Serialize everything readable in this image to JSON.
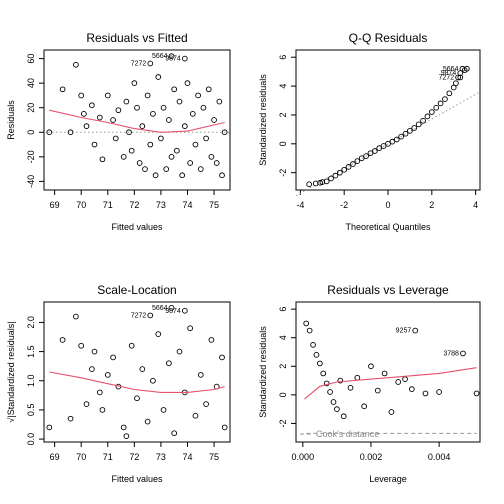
{
  "chart_data": [
    {
      "type": "scatter",
      "title": "Residuals vs Fitted",
      "xlabel": "Fitted values",
      "ylabel": "Residuals",
      "xlim": [
        68.6,
        75.6
      ],
      "ylim": [
        -47,
        67
      ],
      "xticks": [
        69,
        70,
        71,
        72,
        73,
        74,
        75
      ],
      "yticks": [
        -40,
        -20,
        0,
        20,
        40,
        60
      ],
      "points": [
        [
          68.8,
          0
        ],
        [
          69.3,
          35
        ],
        [
          69.6,
          0
        ],
        [
          70.0,
          30
        ],
        [
          70.1,
          15
        ],
        [
          69.8,
          55
        ],
        [
          70.2,
          5
        ],
        [
          70.5,
          -10
        ],
        [
          70.4,
          22
        ],
        [
          70.7,
          12
        ],
        [
          70.8,
          -22
        ],
        [
          71.0,
          30
        ],
        [
          71.2,
          10
        ],
        [
          71.3,
          -5
        ],
        [
          71.4,
          18
        ],
        [
          71.6,
          -20
        ],
        [
          71.7,
          25
        ],
        [
          71.8,
          0
        ],
        [
          71.9,
          -15
        ],
        [
          72.0,
          40
        ],
        [
          72.1,
          20
        ],
        [
          72.2,
          -25
        ],
        [
          72.3,
          5
        ],
        [
          72.4,
          -30
        ],
        [
          72.5,
          30
        ],
        [
          72.6,
          -10
        ],
        [
          72.7,
          15
        ],
        [
          72.8,
          -35
        ],
        [
          72.9,
          45
        ],
        [
          73.0,
          -5
        ],
        [
          73.1,
          20
        ],
        [
          73.2,
          -30
        ],
        [
          73.3,
          10
        ],
        [
          73.4,
          -20
        ],
        [
          73.5,
          35
        ],
        [
          73.6,
          -15
        ],
        [
          73.7,
          25
        ],
        [
          73.8,
          -35
        ],
        [
          73.9,
          5
        ],
        [
          74.0,
          40
        ],
        [
          74.1,
          -25
        ],
        [
          74.2,
          15
        ],
        [
          74.3,
          -10
        ],
        [
          74.4,
          30
        ],
        [
          74.5,
          -30
        ],
        [
          74.6,
          20
        ],
        [
          74.7,
          -5
        ],
        [
          74.8,
          35
        ],
        [
          74.9,
          -20
        ],
        [
          75.0,
          10
        ],
        [
          75.1,
          -25
        ],
        [
          75.2,
          25
        ],
        [
          75.3,
          -35
        ],
        [
          75.4,
          0
        ]
      ],
      "labeled_points": [
        {
          "label": "5664",
          "x": 73.4,
          "y": 62
        },
        {
          "label": "9874",
          "x": 73.9,
          "y": 60
        },
        {
          "label": "7272",
          "x": 72.6,
          "y": 56
        }
      ],
      "smooth": {
        "x": [
          68.8,
          70,
          71,
          72,
          73,
          74,
          75,
          75.4
        ],
        "y": [
          18,
          12,
          8,
          3,
          0,
          1,
          6,
          8
        ]
      },
      "reference_y": 0
    },
    {
      "type": "scatter",
      "title": "Q-Q Residuals",
      "xlabel": "Theoretical Quantiles",
      "ylabel": "Standardized residuals",
      "xlim": [
        -4.2,
        4.2
      ],
      "ylim": [
        -3.2,
        6.5
      ],
      "xticks": [
        -4,
        -2,
        0,
        2,
        4
      ],
      "yticks": [
        -2,
        0,
        2,
        4,
        6
      ],
      "points": [
        [
          -3.6,
          -2.8
        ],
        [
          -3.3,
          -2.75
        ],
        [
          -3.1,
          -2.7
        ],
        [
          -3.0,
          -2.65
        ],
        [
          -2.8,
          -2.6
        ],
        [
          -2.6,
          -2.4
        ],
        [
          -2.4,
          -2.2
        ],
        [
          -2.2,
          -2.0
        ],
        [
          -2.0,
          -1.8
        ],
        [
          -1.8,
          -1.6
        ],
        [
          -1.6,
          -1.4
        ],
        [
          -1.4,
          -1.2
        ],
        [
          -1.2,
          -1.0
        ],
        [
          -1.0,
          -0.85
        ],
        [
          -0.8,
          -0.65
        ],
        [
          -0.6,
          -0.5
        ],
        [
          -0.4,
          -0.3
        ],
        [
          -0.2,
          -0.15
        ],
        [
          0.0,
          0.0
        ],
        [
          0.2,
          0.15
        ],
        [
          0.4,
          0.3
        ],
        [
          0.6,
          0.5
        ],
        [
          0.8,
          0.7
        ],
        [
          1.0,
          0.9
        ],
        [
          1.2,
          1.1
        ],
        [
          1.4,
          1.35
        ],
        [
          1.6,
          1.6
        ],
        [
          1.8,
          1.9
        ],
        [
          2.0,
          2.2
        ],
        [
          2.2,
          2.5
        ],
        [
          2.4,
          2.8
        ],
        [
          2.6,
          3.1
        ],
        [
          2.8,
          3.5
        ],
        [
          3.0,
          3.9
        ],
        [
          3.1,
          4.2
        ],
        [
          3.3,
          4.6
        ],
        [
          3.5,
          5.1
        ],
        [
          3.6,
          5.2
        ]
      ],
      "labeled_points": [
        {
          "label": "5664",
          "x": 3.4,
          "y": 5.2
        },
        {
          "label": "9874",
          "x": 3.3,
          "y": 4.9
        },
        {
          "label": "7272",
          "x": 3.2,
          "y": 4.6
        }
      ],
      "reference_line": {
        "x": [
          -4.2,
          4.2
        ],
        "y": [
          -3.6,
          3.6
        ]
      }
    },
    {
      "type": "scatter",
      "title": "Scale-Location",
      "xlabel": "Fitted values",
      "ylabel": "√|Standardized residuals|",
      "xlim": [
        68.6,
        75.6
      ],
      "ylim": [
        -0.05,
        2.35
      ],
      "xticks": [
        69,
        70,
        71,
        72,
        73,
        74,
        75
      ],
      "yticks": [
        0.0,
        0.5,
        1.0,
        1.5,
        2.0
      ],
      "points": [
        [
          68.8,
          0.2
        ],
        [
          69.3,
          1.7
        ],
        [
          69.8,
          2.1
        ],
        [
          69.6,
          0.35
        ],
        [
          70.0,
          1.6
        ],
        [
          70.2,
          0.6
        ],
        [
          70.4,
          1.2
        ],
        [
          70.5,
          1.5
        ],
        [
          70.7,
          0.8
        ],
        [
          70.8,
          0.5
        ],
        [
          71.0,
          1.1
        ],
        [
          71.2,
          1.4
        ],
        [
          71.4,
          0.9
        ],
        [
          71.6,
          0.2
        ],
        [
          71.7,
          0.05
        ],
        [
          71.9,
          1.6
        ],
        [
          72.1,
          0.7
        ],
        [
          72.3,
          1.2
        ],
        [
          72.5,
          0.3
        ],
        [
          72.7,
          1.0
        ],
        [
          72.9,
          1.8
        ],
        [
          73.1,
          0.5
        ],
        [
          73.3,
          1.3
        ],
        [
          73.5,
          0.1
        ],
        [
          73.7,
          1.5
        ],
        [
          73.9,
          0.8
        ],
        [
          74.1,
          1.9
        ],
        [
          74.3,
          0.4
        ],
        [
          74.5,
          1.1
        ],
        [
          74.7,
          0.6
        ],
        [
          74.9,
          1.7
        ],
        [
          75.1,
          0.9
        ],
        [
          75.3,
          1.4
        ],
        [
          75.4,
          0.2
        ]
      ],
      "labeled_points": [
        {
          "label": "5664",
          "x": 73.4,
          "y": 2.25
        },
        {
          "label": "9874",
          "x": 73.9,
          "y": 2.2
        },
        {
          "label": "7272",
          "x": 72.6,
          "y": 2.12
        }
      ],
      "smooth": {
        "x": [
          68.8,
          70,
          71,
          72,
          73,
          74,
          75,
          75.4
        ],
        "y": [
          1.15,
          1.05,
          0.95,
          0.85,
          0.8,
          0.8,
          0.85,
          0.9
        ]
      }
    },
    {
      "type": "scatter",
      "title": "Residuals vs Leverage",
      "xlabel": "Leverage",
      "ylabel": "Standardized residuals",
      "xlim": [
        -0.0002,
        0.0052
      ],
      "ylim": [
        -3.3,
        6.5
      ],
      "xticks": [
        0.0,
        0.002,
        0.004
      ],
      "xticklabels": [
        "0.000",
        "0.002",
        "0.004"
      ],
      "yticks": [
        -2,
        0,
        2,
        4,
        6
      ],
      "points": [
        [
          0.0001,
          5.0
        ],
        [
          0.0002,
          4.5
        ],
        [
          0.0003,
          3.5
        ],
        [
          0.0004,
          2.8
        ],
        [
          0.0005,
          2.2
        ],
        [
          0.0006,
          1.5
        ],
        [
          0.0007,
          0.8
        ],
        [
          0.0008,
          0.2
        ],
        [
          0.0009,
          -0.5
        ],
        [
          0.001,
          -1.0
        ],
        [
          0.0011,
          1.0
        ],
        [
          0.0012,
          -1.5
        ],
        [
          0.0014,
          0.5
        ],
        [
          0.0016,
          1.2
        ],
        [
          0.0018,
          -0.8
        ],
        [
          0.002,
          2.0
        ],
        [
          0.0022,
          0.3
        ],
        [
          0.0024,
          1.5
        ],
        [
          0.0026,
          -1.2
        ],
        [
          0.0028,
          0.9
        ],
        [
          0.003,
          1.1
        ],
        [
          0.0032,
          0.4
        ],
        [
          0.0036,
          0.1
        ],
        [
          0.004,
          0.2
        ],
        [
          0.0051,
          0.1
        ]
      ],
      "labeled_points": [
        {
          "label": "9257",
          "x": 0.0033,
          "y": 4.5
        },
        {
          "label": "3788",
          "x": 0.0047,
          "y": 2.9
        }
      ],
      "smooth": {
        "x": [
          5e-05,
          0.0005,
          0.001,
          0.002,
          0.003,
          0.004,
          0.0051
        ],
        "y": [
          -0.3,
          0.6,
          0.9,
          1.1,
          1.3,
          1.5,
          1.9
        ]
      },
      "legend": "Cook's distance",
      "cooks_distance": [
        {
          "x": 0.0001,
          "y": -2.7
        },
        {
          "x": 0.0051,
          "y": -2.7
        }
      ]
    }
  ]
}
